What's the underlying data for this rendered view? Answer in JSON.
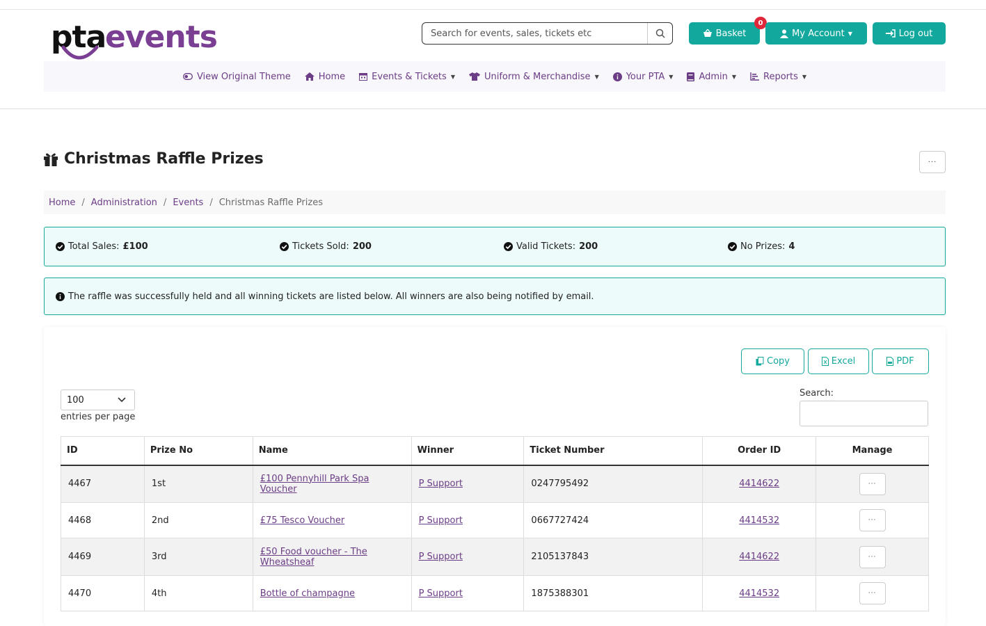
{
  "header": {
    "logo_part1": "pta",
    "logo_part2": "events",
    "search_placeholder": "Search for events, sales, tickets etc",
    "basket_label": "Basket",
    "basket_count": "0",
    "account_label": "My Account",
    "logout_label": "Log out"
  },
  "nav": {
    "items": [
      {
        "label": "View Original Theme",
        "icon": "toggle-icon"
      },
      {
        "label": "Home",
        "icon": "home-icon"
      },
      {
        "label": "Events & Tickets",
        "icon": "calendar-icon"
      },
      {
        "label": "Uniform & Merchandise",
        "icon": "tshirt-icon"
      },
      {
        "label": "Your PTA",
        "icon": "info-icon"
      },
      {
        "label": "Admin",
        "icon": "book-icon"
      },
      {
        "label": "Reports",
        "icon": "chart-icon"
      }
    ]
  },
  "page": {
    "title": "Christmas Raffle Prizes",
    "more_label": "···"
  },
  "breadcrumb": {
    "items": [
      "Home",
      "Administration",
      "Events"
    ],
    "current": "Christmas Raffle Prizes"
  },
  "stats": {
    "total_sales_label": "Total Sales:",
    "total_sales_value": "£100",
    "tickets_sold_label": "Tickets Sold:",
    "tickets_sold_value": "200",
    "valid_tickets_label": "Valid Tickets:",
    "valid_tickets_value": "200",
    "no_prizes_label": "No Prizes:",
    "no_prizes_value": "4"
  },
  "info_message": "The raffle was successfully held and all winning tickets are listed below. All winners are also being notified by email.",
  "table_tools": {
    "copy_label": "Copy",
    "excel_label": "Excel",
    "pdf_label": "PDF",
    "entries_value": "100",
    "entries_label": "entries per page",
    "search_label": "Search:"
  },
  "table": {
    "columns": [
      "ID",
      "Prize No",
      "Name",
      "Winner",
      "Ticket Number",
      "Order ID",
      "Manage"
    ],
    "rows": [
      {
        "id": "4467",
        "prize_no": "1st",
        "name": "£100 Pennyhill Park Spa Voucher",
        "winner": "P Support",
        "ticket": "0247795492",
        "order": "4414622"
      },
      {
        "id": "4468",
        "prize_no": "2nd",
        "name": "£75 Tesco Voucher",
        "winner": "P Support",
        "ticket": "0667727424",
        "order": "4414532"
      },
      {
        "id": "4469",
        "prize_no": "3rd",
        "name": "£50 Food voucher - The Wheatsheaf",
        "winner": "P Support",
        "ticket": "2105137843",
        "order": "4414622"
      },
      {
        "id": "4470",
        "prize_no": "4th",
        "name": "Bottle of champagne",
        "winner": "P Support",
        "ticket": "1875388301",
        "order": "4414532"
      }
    ]
  },
  "colors": {
    "accent": "#12a89d",
    "brand_purple": "#7a3f93",
    "badge_red": "#e0283b"
  }
}
